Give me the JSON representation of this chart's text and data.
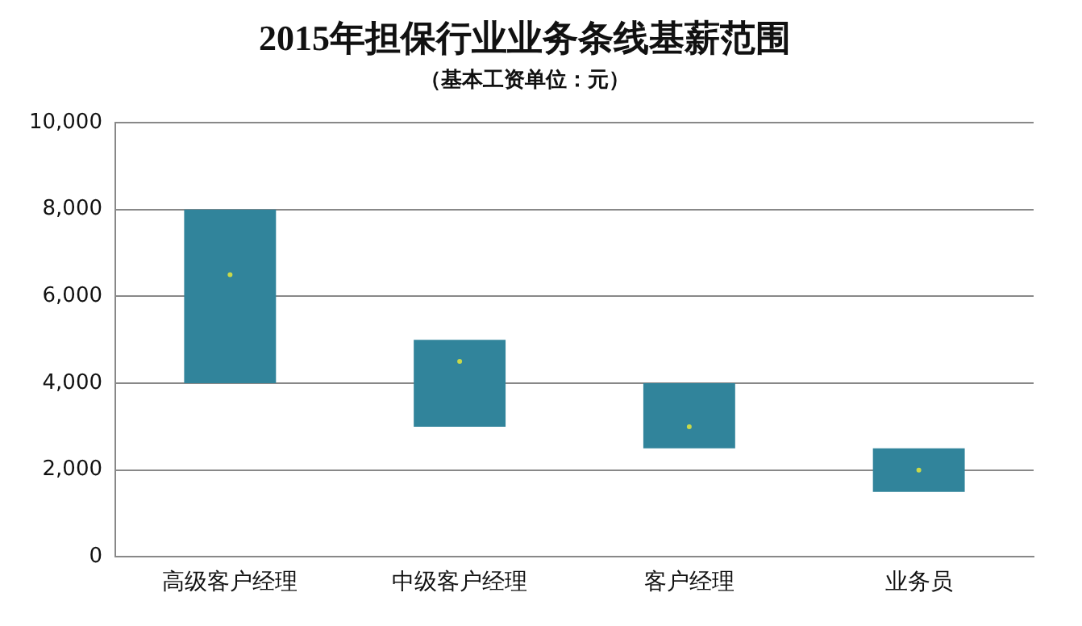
{
  "chart_data": {
    "type": "bar",
    "title": "2015年担保行业业务条线基薪范围",
    "subtitle": "（基本工资单位：元）",
    "categories": [
      "高级客户经理",
      "中级客户经理",
      "客户经理",
      "业务员"
    ],
    "series": [
      {
        "color": "#31849b",
        "base": [
          4000,
          3000,
          2500,
          1500
        ],
        "values": [
          4000,
          2000,
          1500,
          1000
        ]
      },
      {
        "type": "scatter",
        "color": "#c8d84a",
        "x": [
          "高级客户经理",
          "中级客户经理",
          "客户经理",
          "业务员"
        ],
        "values": [
          6500,
          4500,
          3000,
          2000
        ],
        "marker": "circle"
      }
    ],
    "ylim": [
      0,
      10000
    ],
    "yticks": [
      {
        "value": 0,
        "label": "0"
      },
      {
        "value": 2000,
        "label": "2,000"
      },
      {
        "value": 4000,
        "label": "4,000"
      },
      {
        "value": 6000,
        "label": "6,000"
      },
      {
        "value": 8000,
        "label": "8,000"
      },
      {
        "value": 10000,
        "label": "10,000"
      }
    ],
    "grid": "y",
    "legend": false
  }
}
